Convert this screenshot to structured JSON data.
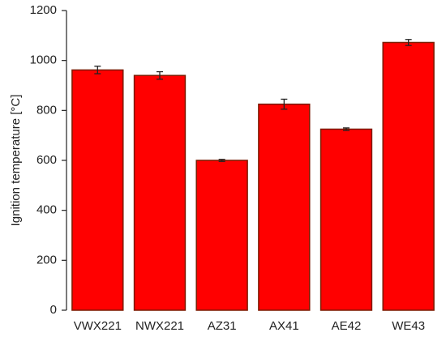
{
  "chart_data": {
    "type": "bar",
    "y_label": "Ignition temperature [°C]",
    "categories": [
      "VWX221",
      "NWX221",
      "AZ31",
      "AX41",
      "AE42",
      "WE43"
    ],
    "values": [
      962,
      940,
      600,
      825,
      725,
      1072
    ],
    "errors": [
      15,
      15,
      4,
      20,
      5,
      12
    ],
    "color": "#ff0000",
    "ylim": [
      0,
      1200
    ],
    "yticks": [
      0,
      200,
      400,
      600,
      800,
      1000,
      1200
    ],
    "grid": false
  }
}
